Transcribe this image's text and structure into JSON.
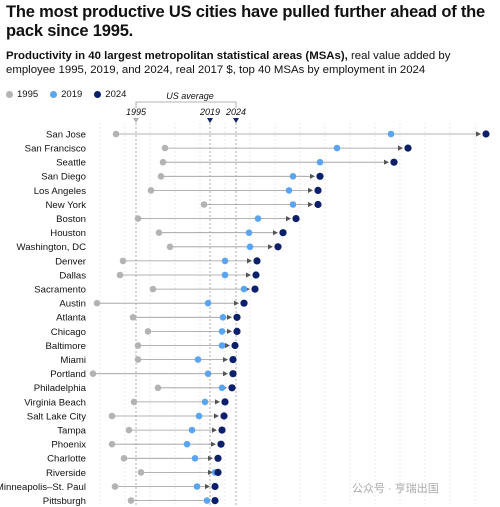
{
  "header": {
    "title": "The most productive US cities have pulled further ahead of the pack since 1995.",
    "subtitle_bold": "Productivity in 40 largest metropolitan statistical areas (MSAs),",
    "subtitle_rest": " real value added by employee 1995, 2019, and 2024, real 2017 $, top 40 MSAs by employment in 2024"
  },
  "legend": {
    "items": [
      {
        "label": "1995",
        "color": "#b3b3b3"
      },
      {
        "label": "2019",
        "color": "#5aa5f2"
      },
      {
        "label": "2024",
        "color": "#0b1f6b"
      }
    ]
  },
  "annotations": {
    "us_average_label": "US average",
    "avg_year_labels": [
      "1995",
      "2019",
      "2024"
    ]
  },
  "watermark": "公众号 · 亨瑞出国",
  "chart_data": {
    "type": "scatter",
    "title": "The most productive US cities have pulled further ahead of the pack since 1995.",
    "categories": [
      "San Jose",
      "San Francisco",
      "Seattle",
      "San Diego",
      "Los Angeles",
      "New York",
      "Boston",
      "Houston",
      "Washington, DC",
      "Denver",
      "Dallas",
      "Sacramento",
      "Austin",
      "Atlanta",
      "Chicago",
      "Baltimore",
      "Miami",
      "Portland",
      "Philadelphia",
      "Virginia Beach",
      "Salt Lake City",
      "Tampa",
      "Phoenix",
      "Charlotte",
      "Riverside",
      "Minneapolis–St. Paul",
      "Pittsburgh"
    ],
    "series": [
      {
        "name": "1995",
        "color": "#b3b3b3",
        "values": [
          116,
          165,
          163,
          161,
          151,
          204,
          138,
          159,
          170,
          123,
          120,
          153,
          97,
          133,
          148,
          138,
          138,
          93,
          158,
          134,
          112,
          129,
          112,
          124,
          141,
          115,
          131
        ]
      },
      {
        "name": "2019",
        "color": "#5aa5f2",
        "values": [
          391,
          337,
          320,
          293,
          289,
          293,
          258,
          249,
          250,
          225,
          225,
          244,
          208,
          223,
          222,
          222,
          198,
          208,
          222,
          205,
          199,
          192,
          187,
          195,
          215,
          197,
          207
        ]
      },
      {
        "name": "2024",
        "color": "#0b1f6b",
        "values": [
          486,
          408,
          394,
          320,
          318,
          318,
          296,
          283,
          278,
          257,
          256,
          255,
          244,
          237,
          237,
          235,
          233,
          233,
          232,
          225,
          224,
          222,
          221,
          218,
          218,
          215,
          215
        ]
      }
    ],
    "us_average": {
      "1995": 136,
      "2019": 210,
      "2024": 236
    },
    "xlim": [
      90,
      490
    ]
  }
}
